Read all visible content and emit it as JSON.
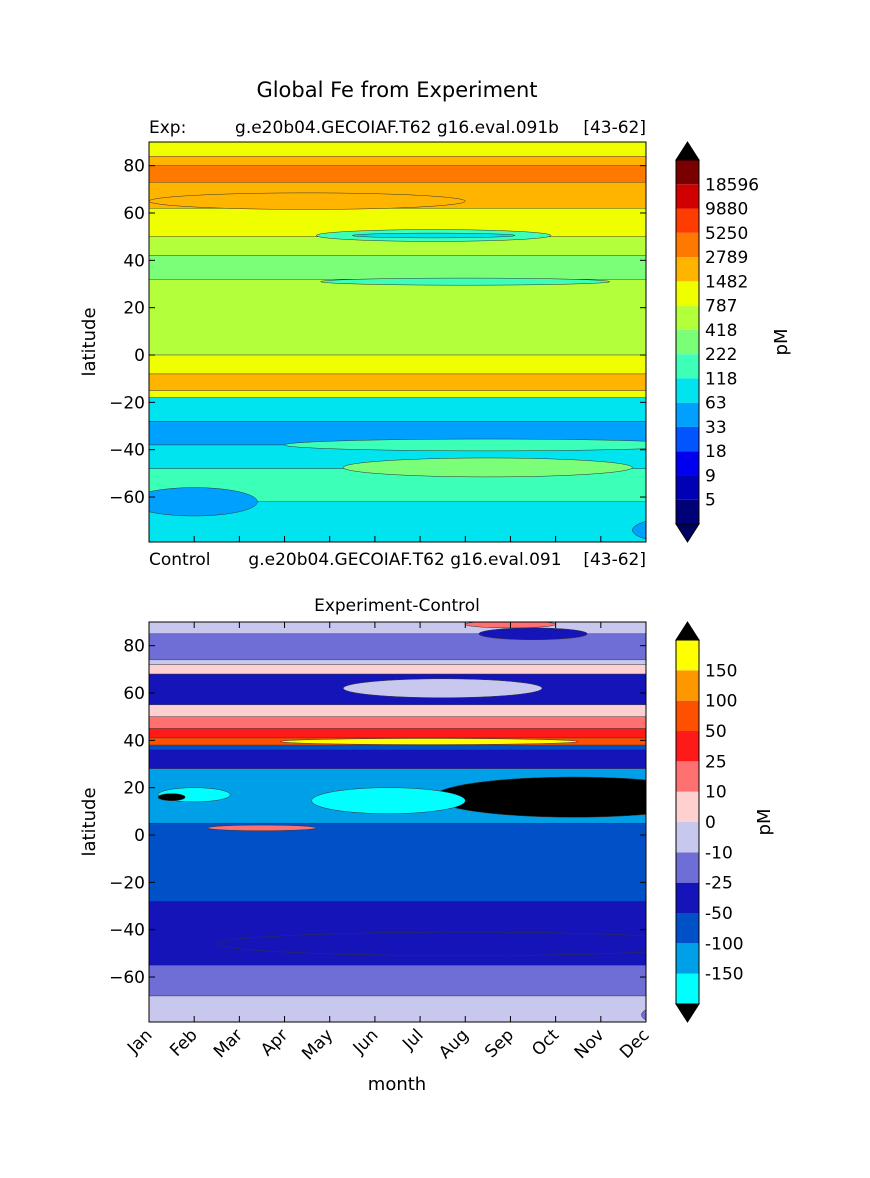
{
  "figure": {
    "suptitle": "Global Fe from Experiment"
  },
  "chart_data": [
    {
      "type": "heatmap",
      "title_left": "Exp:",
      "title_center": "g.e20b04.GECOIAF.T62 g16.eval.091b",
      "title_right": "[43-62]",
      "xlabel": "",
      "ylabel": "latitude",
      "yticks": [
        80,
        60,
        40,
        20,
        0,
        -20,
        -40,
        -60
      ],
      "ylim": [
        -79,
        90
      ],
      "colorbar": {
        "label": "pM",
        "ticks": [
          "18596",
          "9880",
          "5250",
          "2789",
          "1482",
          "787",
          "418",
          "222",
          "118",
          "63",
          "33",
          "18",
          "9",
          "5"
        ],
        "colors": [
          "#000078",
          "#0000b4",
          "#0000ee",
          "#0055ff",
          "#00a0ff",
          "#00e4f0",
          "#3cffb8",
          "#7cff78",
          "#b4ff3c",
          "#f0ff00",
          "#ffb400",
          "#ff7800",
          "#ff3c00",
          "#d00000",
          "#7a0000"
        ],
        "under": "#000060",
        "over": "#000000"
      },
      "bands": [
        {
          "lat": [
            84,
            90
          ],
          "color": "#f0ff00"
        },
        {
          "lat": [
            80,
            84
          ],
          "color": "#ffb400"
        },
        {
          "lat": [
            73,
            80
          ],
          "color": "#ff7800"
        },
        {
          "lat": [
            62,
            73
          ],
          "color": "#ffb400"
        },
        {
          "lat": [
            50,
            62
          ],
          "color": "#f0ff00"
        },
        {
          "lat": [
            42,
            50
          ],
          "color": "#b4ff3c"
        },
        {
          "lat": [
            32,
            42
          ],
          "color": "#7cff78"
        },
        {
          "lat": [
            0,
            32
          ],
          "color": "#b4ff3c"
        },
        {
          "lat": [
            -8,
            0
          ],
          "color": "#f0ff00"
        },
        {
          "lat": [
            -15,
            -8
          ],
          "color": "#ffb400"
        },
        {
          "lat": [
            -18,
            -15
          ],
          "color": "#f0ff00"
        },
        {
          "lat": [
            -28,
            -18
          ],
          "color": "#00e4f0"
        },
        {
          "lat": [
            -38,
            -28
          ],
          "color": "#00a0ff"
        },
        {
          "lat": [
            -48,
            -38
          ],
          "color": "#00e4f0"
        },
        {
          "lat": [
            -62,
            -48
          ],
          "color": "#3cffb8"
        },
        {
          "lat": [
            -79,
            -62
          ],
          "color": "#00e4f0"
        }
      ],
      "blobs": [
        {
          "month": 6.3,
          "lat": 50.5,
          "dm": 2.6,
          "dl": 2.5,
          "color": "#3cffb8"
        },
        {
          "month": 6.3,
          "lat": 50.5,
          "dm": 1.8,
          "dl": 1.0,
          "color": "#00e4f0"
        },
        {
          "month": 7.0,
          "lat": 31.0,
          "dm": 3.2,
          "dl": 1.5,
          "color": "#3cffb8"
        },
        {
          "month": 3.5,
          "lat": 65.0,
          "dm": 3.5,
          "dl": 3.5,
          "color": "#ffb400"
        },
        {
          "month": 1.0,
          "lat": -62.0,
          "dm": 1.4,
          "dl": 6.0,
          "color": "#00a0ff"
        },
        {
          "month": 7.5,
          "lat": -47.5,
          "dm": 3.2,
          "dl": 4.0,
          "color": "#7cff78"
        },
        {
          "month": 7.5,
          "lat": -38.0,
          "dm": 4.5,
          "dl": 2.5,
          "color": "#3cffb8"
        },
        {
          "month": 11.6,
          "lat": -74.0,
          "dm": 0.9,
          "dl": 5.0,
          "color": "#00a0ff"
        }
      ]
    },
    {
      "type": "heatmap",
      "title_left": "Control",
      "title_center": "g.e20b04.GECOIAF.T62 g16.eval.091",
      "title_right": "[43-62]",
      "title": "Experiment-Control",
      "xlabel": "month",
      "ylabel": "latitude",
      "months": [
        "Jan",
        "Feb",
        "Mar",
        "Apr",
        "May",
        "Jun",
        "Jul",
        "Aug",
        "Sep",
        "Oct",
        "Nov",
        "Dec"
      ],
      "yticks": [
        80,
        60,
        40,
        20,
        0,
        -20,
        -40,
        -60
      ],
      "ylim": [
        -79,
        90
      ],
      "colorbar": {
        "label": "pM",
        "ticks": [
          "150",
          "100",
          "50",
          "25",
          "10",
          "0",
          "-10",
          "-25",
          "-50",
          "-100",
          "-150"
        ],
        "colors": [
          "#00ffff",
          "#00a0e8",
          "#0050c8",
          "#1414b8",
          "#6e6ed6",
          "#c8c8ee",
          "#ffd0d0",
          "#ff7070",
          "#ff1a1a",
          "#ff5000",
          "#ff9800",
          "#ffff00"
        ],
        "under": "#000000",
        "over": "#000000"
      },
      "bands": [
        {
          "lat": [
            85,
            90
          ],
          "color": "#c8c8ee"
        },
        {
          "lat": [
            74,
            85
          ],
          "color": "#6e6ed6"
        },
        {
          "lat": [
            72,
            74
          ],
          "color": "#c8c8ee"
        },
        {
          "lat": [
            68,
            72
          ],
          "color": "#ffd0d0"
        },
        {
          "lat": [
            55,
            68
          ],
          "color": "#1414b8"
        },
        {
          "lat": [
            50,
            55
          ],
          "color": "#ffd0d0"
        },
        {
          "lat": [
            45,
            50
          ],
          "color": "#ff7070"
        },
        {
          "lat": [
            41,
            45
          ],
          "color": "#ff1a1a"
        },
        {
          "lat": [
            38,
            41
          ],
          "color": "#ff5000"
        },
        {
          "lat": [
            36,
            38
          ],
          "color": "#0050c8"
        },
        {
          "lat": [
            28,
            36
          ],
          "color": "#1414b8"
        },
        {
          "lat": [
            5,
            28
          ],
          "color": "#00a0e8"
        },
        {
          "lat": [
            -28,
            5
          ],
          "color": "#0050c8"
        },
        {
          "lat": [
            -55,
            -28
          ],
          "color": "#1414b8"
        },
        {
          "lat": [
            -68,
            -55
          ],
          "color": "#6e6ed6"
        },
        {
          "lat": [
            -79,
            -68
          ],
          "color": "#c8c8ee"
        }
      ],
      "blobs": [
        {
          "month": 9.4,
          "lat": 16.0,
          "dm": 3.1,
          "dl": 8.5,
          "color": "#000000"
        },
        {
          "month": 5.3,
          "lat": 14.5,
          "dm": 1.7,
          "dl": 5.5,
          "color": "#00ffff"
        },
        {
          "month": 1.0,
          "lat": 17.0,
          "dm": 0.8,
          "dl": 3.0,
          "color": "#00ffff"
        },
        {
          "month": 0.5,
          "lat": 16.0,
          "dm": 0.3,
          "dl": 1.5,
          "color": "#000000"
        },
        {
          "month": 6.2,
          "lat": 39.5,
          "dm": 3.3,
          "dl": 1.3,
          "color": "#ffff00"
        },
        {
          "month": 6.5,
          "lat": 62.0,
          "dm": 2.2,
          "dl": 4.0,
          "color": "#c8c8ee"
        },
        {
          "month": 8.5,
          "lat": 85.0,
          "dm": 1.2,
          "dl": 2.5,
          "color": "#1414b8"
        },
        {
          "month": 8.0,
          "lat": 89.0,
          "dm": 1.0,
          "dl": 1.5,
          "color": "#ff7070"
        },
        {
          "month": 2.5,
          "lat": 3.0,
          "dm": 1.2,
          "dl": 1.2,
          "color": "#ff7070"
        },
        {
          "month": 7.0,
          "lat": -46.0,
          "dm": 5.5,
          "dl": 5.0,
          "color": "#1414b8"
        },
        {
          "month": 11.5,
          "lat": -76.0,
          "dm": 0.6,
          "dl": 4.0,
          "color": "#6e6ed6"
        }
      ]
    }
  ]
}
